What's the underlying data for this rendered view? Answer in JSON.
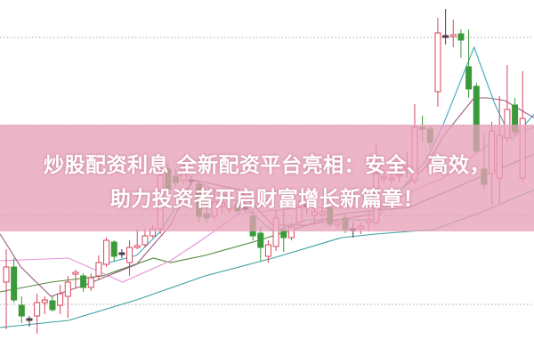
{
  "headline": {
    "line1": "炒股配资利息 全新配资平台亮相：安全、高效，",
    "line2": "助力投资者开启财富增长新篇章！"
  },
  "colors": {
    "up": "#d9455a",
    "down": "#3a9a3a",
    "doji": "#4a3a4a",
    "banner": "#e8a0b8",
    "grid": "#b0a0a8"
  },
  "chart_data": {
    "type": "candlestick",
    "title": "",
    "grid": true,
    "candles": [
      [
        8.3,
        12.0,
        3.0,
        10.0
      ],
      [
        10.0,
        11.0,
        6.0,
        6.3
      ],
      [
        5.7,
        6.7,
        3.7,
        4.5
      ],
      [
        4.2,
        4.5,
        3.3,
        4.2
      ],
      [
        4.5,
        7.0,
        2.5,
        6.0
      ],
      [
        6.0,
        6.7,
        4.7,
        6.3
      ],
      [
        6.2,
        6.7,
        5.0,
        5.2
      ],
      [
        5.7,
        8.0,
        4.7,
        7.0
      ],
      [
        6.7,
        9.0,
        4.3,
        8.3
      ],
      [
        9.2,
        9.7,
        7.7,
        9.4
      ],
      [
        9.0,
        9.3,
        7.2,
        7.7
      ],
      [
        7.7,
        9.3,
        7.3,
        8.8
      ],
      [
        9.0,
        11.3,
        8.5,
        10.5
      ],
      [
        10.3,
        13.3,
        10.0,
        13.0
      ],
      [
        12.8,
        13.0,
        10.7,
        11.2
      ],
      [
        11.5,
        12.0,
        11.0,
        11.6
      ],
      [
        10.5,
        13.0,
        9.0,
        12.2
      ],
      [
        12.2,
        14.3,
        12.0,
        12.4
      ],
      [
        12.5,
        14.3,
        12.2,
        13.5
      ],
      [
        13.5,
        14.7,
        13.3,
        14.3
      ],
      [
        14.3,
        21.7,
        13.7,
        20.3
      ],
      [
        21.0,
        21.7,
        18.0,
        18.7
      ],
      [
        20.2,
        21.0,
        19.0,
        19.5
      ],
      [
        19.7,
        22.0,
        19.3,
        21.3
      ],
      [
        19.7,
        20.2,
        19.2,
        19.8
      ],
      [
        19.3,
        19.7,
        15.0,
        15.7
      ],
      [
        16.0,
        16.7,
        15.0,
        15.5
      ],
      [
        15.7,
        18.7,
        15.3,
        17.3
      ],
      [
        16.8,
        17.8,
        16.0,
        17.2
      ],
      [
        16.5,
        17.5,
        16.0,
        16.8
      ],
      [
        17.0,
        17.5,
        16.0,
        16.3
      ],
      [
        16.7,
        17.2,
        16.2,
        16.7
      ],
      [
        15.7,
        16.5,
        13.0,
        13.5
      ],
      [
        13.8,
        14.5,
        10.7,
        12.2
      ],
      [
        11.2,
        13.0,
        10.5,
        12.5
      ],
      [
        12.3,
        16.5,
        11.8,
        15.5
      ],
      [
        14.2,
        16.5,
        11.7,
        13.3
      ],
      [
        13.3,
        15.0,
        13.0,
        14.5
      ],
      [
        15.0,
        17.5,
        14.7,
        16.7
      ],
      [
        17.0,
        17.5,
        16.0,
        17.0
      ],
      [
        15.8,
        17.5,
        15.0,
        16.2
      ],
      [
        15.9,
        16.8,
        15.0,
        16.2
      ],
      [
        16.7,
        17.2,
        14.5,
        14.8
      ],
      [
        14.7,
        15.5,
        14.2,
        15.0
      ],
      [
        15.5,
        16.0,
        13.8,
        14.2
      ],
      [
        14.3,
        15.0,
        13.3,
        14.3
      ],
      [
        14.3,
        15.0,
        13.7,
        14.6
      ],
      [
        15.0,
        16.3,
        14.0,
        15.3
      ],
      [
        15.0,
        24.0,
        14.7,
        20.5
      ],
      [
        19.9,
        21.0,
        19.5,
        20.1
      ],
      [
        19.8,
        20.8,
        19.3,
        20.0
      ],
      [
        20.2,
        21.0,
        19.5,
        20.4
      ],
      [
        21.0,
        23.0,
        20.0,
        21.3
      ],
      [
        19.7,
        28.3,
        19.3,
        25.7
      ],
      [
        25.7,
        27.0,
        24.0,
        25.5
      ],
      [
        25.5,
        25.8,
        23.3,
        24.0
      ],
      [
        29.7,
        38.0,
        28.0,
        36.3
      ],
      [
        36.0,
        39.0,
        35.0,
        36.0
      ],
      [
        35.9,
        37.8,
        34.7,
        36.1
      ],
      [
        36.2,
        36.7,
        33.5,
        35.5
      ],
      [
        32.5,
        36.7,
        29.0,
        30.0
      ],
      [
        30.3,
        30.7,
        22.8,
        23.0
      ],
      [
        21.0,
        25.0,
        18.7,
        19.3
      ],
      [
        20.5,
        26.3,
        17.0,
        25.3
      ],
      [
        20.0,
        29.2,
        17.0,
        24.8
      ],
      [
        24.5,
        32.7,
        24.0,
        27.7
      ],
      [
        28.2,
        29.0,
        24.8,
        25.2
      ],
      [
        20.0,
        32.0,
        19.5,
        26.7
      ]
    ],
    "moving_averages": [
      {
        "color": "#3aa0a0",
        "points": [
          [
            -0.8,
            3.2
          ],
          [
            8.1,
            4.0
          ],
          [
            16.9,
            6.3
          ],
          [
            25.8,
            9.0
          ],
          [
            34.6,
            11.0
          ],
          [
            43.5,
            13.3
          ],
          [
            47.9,
            13.7
          ],
          [
            55.4,
            14.2
          ],
          [
            61.2,
            16.0
          ],
          [
            68.6,
            18.7
          ]
        ]
      },
      {
        "color": "#4e8a3a",
        "points": [
          [
            -0.8,
            7.2
          ],
          [
            5.8,
            8.3
          ],
          [
            12.5,
            9.0
          ],
          [
            19.1,
            11.0
          ],
          [
            21.3,
            10.5
          ],
          [
            25.8,
            11.3
          ],
          [
            32.8,
            13.0
          ],
          [
            39,
            14.7
          ],
          [
            43.5,
            16.0
          ],
          [
            52.3,
            16.7
          ],
          [
            61.2,
            20.0
          ],
          [
            68.6,
            22.7
          ]
        ]
      },
      {
        "color": "#e890d8",
        "points": [
          [
            -0.8,
            10.7
          ],
          [
            8.1,
            11.0
          ],
          [
            12.5,
            9.3
          ],
          [
            15.1,
            8.3
          ],
          [
            21.3,
            10.7
          ],
          [
            25.8,
            13.3
          ],
          [
            30.2,
            16.0
          ],
          [
            39,
            16.7
          ],
          [
            47.9,
            16.7
          ],
          [
            56.7,
            20.0
          ],
          [
            63.4,
            24.3
          ],
          [
            68.6,
            25.7
          ]
        ]
      },
      {
        "color": "#9a5a80",
        "points": [
          [
            -0.8,
            13.7
          ],
          [
            1.9,
            10.0
          ],
          [
            5.8,
            6.7
          ],
          [
            10.3,
            8.0
          ],
          [
            16.9,
            10.3
          ],
          [
            21.3,
            14.7
          ],
          [
            24.2,
            19.8
          ],
          [
            30.2,
            18.7
          ],
          [
            34.6,
            14.7
          ],
          [
            39,
            14.7
          ],
          [
            47.9,
            16.0
          ],
          [
            54.5,
            21.3
          ],
          [
            56.7,
            24.7
          ],
          [
            60.7,
            29.0
          ],
          [
            62.5,
            29.0
          ],
          [
            64.7,
            28.7
          ],
          [
            68.6,
            26.7
          ]
        ]
      },
      {
        "color": "#40a8b8",
        "points": [
          [
            12.5,
            10.3
          ],
          [
            16.9,
            11.3
          ],
          [
            20,
            14.0
          ],
          [
            24.2,
            19.8
          ],
          [
            30.2,
            17.3
          ],
          [
            34.6,
            14.0
          ],
          [
            39,
            15.3
          ],
          [
            47.9,
            15.3
          ],
          [
            54.5,
            22.0
          ],
          [
            56.7,
            26.0
          ],
          [
            60.7,
            34.7
          ],
          [
            63.4,
            28.3
          ],
          [
            65.6,
            24.3
          ],
          [
            68.6,
            27.3
          ]
        ]
      }
    ]
  }
}
